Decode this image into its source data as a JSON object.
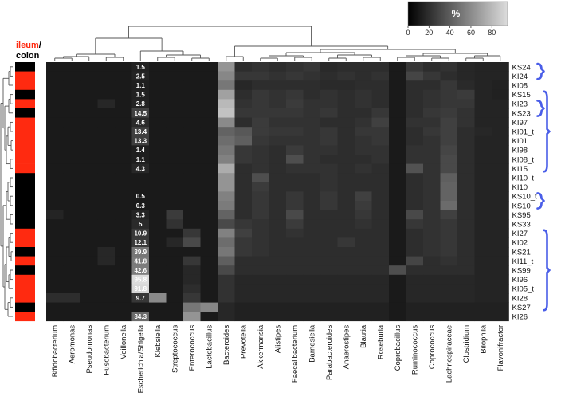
{
  "chart_data": {
    "type": "heatmap",
    "title": "",
    "side_legend": {
      "ileum": "ileum",
      "separator": "/",
      "colon": "colon",
      "ileum_color": "#ff2a10",
      "colon_color": "#000000"
    },
    "colorbar": {
      "title": "%",
      "ticks": [
        "0",
        "20",
        "40",
        "60",
        "80"
      ],
      "range": [
        0,
        95
      ],
      "low_color": "#000000",
      "high_color": "#dcdcdc"
    },
    "background_color": "#1a1a1a",
    "bracket_color": "#4a5ee8",
    "columns": [
      "Bifidobacterium",
      "Aeromonas",
      "Pseudomonas",
      "Fusobacterium",
      "Veillonella",
      "Escherichia/Shigella",
      "Klebsiella",
      "Streptococcus",
      "Enterococcus",
      "Lactobacillus",
      "Bacteroides",
      "Prevotella",
      "Akkermansia",
      "Alistipes",
      "Faecalibacterium",
      "Barnesiella",
      "Parabacteroides",
      "Anaerostipes",
      "Blautia",
      "Roseburia",
      "Coprobacillus",
      "Ruminococcus",
      "Coprococcus",
      "Lachnospiraceae",
      "Clostridium",
      "Bilophila",
      "Flavonifractor"
    ],
    "rows": [
      {
        "name": "KS24",
        "type": "colon",
        "esch": "1.5"
      },
      {
        "name": "KI24",
        "type": "ileum",
        "esch": "2.5"
      },
      {
        "name": "KI08",
        "type": "ileum",
        "esch": "1.1"
      },
      {
        "name": "KS15",
        "type": "colon",
        "esch": "1.5"
      },
      {
        "name": "KI23",
        "type": "ileum",
        "esch": "2.8"
      },
      {
        "name": "KS23",
        "type": "colon",
        "esch": "14.5"
      },
      {
        "name": "KI97",
        "type": "ileum",
        "esch": "4.6"
      },
      {
        "name": "KI01_t",
        "type": "ileum",
        "esch": "13.4"
      },
      {
        "name": "KI01",
        "type": "ileum",
        "esch": "13.3"
      },
      {
        "name": "KI98",
        "type": "ileum",
        "esch": "1.4"
      },
      {
        "name": "KI08_t",
        "type": "ileum",
        "esch": "1.1"
      },
      {
        "name": "KI15",
        "type": "ileum",
        "esch": "4.3"
      },
      {
        "name": "KI10_t",
        "type": "colon",
        "esch": ""
      },
      {
        "name": "KI10",
        "type": "colon",
        "esch": ""
      },
      {
        "name": "KS10_t",
        "type": "colon",
        "esch": "0.5"
      },
      {
        "name": "KS10",
        "type": "colon",
        "esch": "0.3"
      },
      {
        "name": "KS95",
        "type": "colon",
        "esch": "3.3"
      },
      {
        "name": "KS33",
        "type": "colon",
        "esch": "5"
      },
      {
        "name": "KI27",
        "type": "ileum",
        "esch": "10.9"
      },
      {
        "name": "KI02",
        "type": "ileum",
        "esch": "12.1"
      },
      {
        "name": "KS21",
        "type": "colon",
        "esch": "39.9"
      },
      {
        "name": "KI11_t",
        "type": "ileum",
        "esch": "41.8"
      },
      {
        "name": "KS99",
        "type": "colon",
        "esch": "42.6"
      },
      {
        "name": "KI96",
        "type": "ileum",
        "esch": "95.8"
      },
      {
        "name": "KI05_t",
        "type": "ileum",
        "esch": "91.8"
      },
      {
        "name": "KI28",
        "type": "ileum",
        "esch": "9.7"
      },
      {
        "name": "KS27",
        "type": "colon",
        "esch": ""
      },
      {
        "name": "KI26",
        "type": "ileum",
        "esch": "34.3"
      }
    ],
    "values": [
      [
        0,
        0,
        0,
        0,
        0,
        2,
        0,
        0,
        0,
        0,
        55,
        6,
        8,
        6,
        8,
        10,
        5,
        6,
        6,
        6,
        0,
        10,
        6,
        8,
        4,
        3,
        3
      ],
      [
        0,
        0,
        0,
        0,
        0,
        3,
        0,
        0,
        0,
        0,
        48,
        10,
        10,
        8,
        10,
        8,
        6,
        8,
        6,
        8,
        0,
        16,
        10,
        6,
        4,
        3,
        3
      ],
      [
        0,
        0,
        0,
        0,
        0,
        1,
        0,
        0,
        0,
        0,
        40,
        4,
        6,
        6,
        6,
        6,
        5,
        5,
        6,
        6,
        0,
        6,
        6,
        10,
        5,
        3,
        2
      ],
      [
        0,
        0,
        0,
        0,
        0,
        2,
        0,
        0,
        0,
        0,
        62,
        6,
        10,
        8,
        10,
        6,
        8,
        6,
        8,
        6,
        0,
        6,
        8,
        10,
        12,
        3,
        2
      ],
      [
        0,
        0,
        0,
        4,
        0,
        3,
        0,
        0,
        0,
        0,
        75,
        8,
        10,
        8,
        12,
        8,
        8,
        6,
        8,
        6,
        0,
        6,
        8,
        10,
        10,
        3,
        3
      ],
      [
        0,
        0,
        0,
        0,
        0,
        15,
        0,
        0,
        0,
        0,
        80,
        10,
        10,
        10,
        10,
        8,
        10,
        6,
        6,
        10,
        0,
        6,
        10,
        12,
        8,
        3,
        3
      ],
      [
        0,
        0,
        0,
        0,
        0,
        5,
        0,
        0,
        0,
        0,
        50,
        6,
        12,
        8,
        8,
        8,
        6,
        6,
        8,
        14,
        0,
        8,
        8,
        14,
        8,
        3,
        3
      ],
      [
        0,
        0,
        0,
        0,
        0,
        14,
        0,
        0,
        0,
        0,
        30,
        25,
        12,
        10,
        10,
        8,
        10,
        6,
        10,
        10,
        0,
        6,
        10,
        14,
        6,
        4,
        3
      ],
      [
        0,
        0,
        0,
        0,
        0,
        13,
        0,
        0,
        0,
        0,
        35,
        28,
        10,
        8,
        8,
        8,
        10,
        6,
        8,
        10,
        0,
        6,
        8,
        14,
        6,
        3,
        3
      ],
      [
        0,
        0,
        0,
        0,
        0,
        1,
        0,
        0,
        0,
        0,
        40,
        10,
        8,
        6,
        12,
        8,
        8,
        6,
        8,
        8,
        0,
        8,
        8,
        16,
        6,
        3,
        3
      ],
      [
        0,
        0,
        0,
        0,
        0,
        1,
        0,
        0,
        0,
        0,
        45,
        10,
        8,
        6,
        20,
        8,
        6,
        6,
        6,
        8,
        0,
        8,
        8,
        18,
        6,
        3,
        3
      ],
      [
        0,
        0,
        0,
        0,
        0,
        4,
        0,
        0,
        0,
        0,
        68,
        6,
        8,
        6,
        8,
        8,
        8,
        6,
        8,
        6,
        0,
        22,
        8,
        18,
        6,
        3,
        3
      ],
      [
        0,
        0,
        0,
        0,
        0,
        0,
        0,
        0,
        0,
        0,
        55,
        6,
        20,
        6,
        6,
        6,
        8,
        6,
        6,
        6,
        0,
        6,
        8,
        28,
        6,
        3,
        3
      ],
      [
        0,
        0,
        0,
        0,
        0,
        0,
        0,
        0,
        0,
        0,
        55,
        6,
        12,
        6,
        6,
        6,
        8,
        6,
        6,
        6,
        0,
        6,
        8,
        30,
        6,
        3,
        3
      ],
      [
        0,
        0,
        0,
        0,
        0,
        0,
        0,
        0,
        0,
        0,
        45,
        6,
        10,
        6,
        10,
        6,
        10,
        6,
        14,
        6,
        0,
        6,
        8,
        30,
        6,
        3,
        3
      ],
      [
        0,
        0,
        0,
        0,
        0,
        0,
        0,
        0,
        0,
        0,
        42,
        6,
        10,
        6,
        10,
        6,
        10,
        6,
        12,
        6,
        0,
        6,
        8,
        34,
        6,
        3,
        3
      ],
      [
        3,
        0,
        0,
        0,
        0,
        3,
        0,
        12,
        0,
        0,
        30,
        6,
        10,
        6,
        18,
        6,
        6,
        6,
        10,
        6,
        0,
        18,
        8,
        14,
        6,
        3,
        3
      ],
      [
        0,
        0,
        0,
        0,
        0,
        5,
        0,
        8,
        0,
        0,
        18,
        10,
        8,
        6,
        12,
        6,
        6,
        6,
        8,
        6,
        0,
        10,
        8,
        10,
        6,
        3,
        3
      ],
      [
        0,
        0,
        0,
        0,
        0,
        11,
        0,
        0,
        10,
        0,
        45,
        14,
        8,
        6,
        8,
        6,
        6,
        6,
        6,
        6,
        0,
        6,
        8,
        10,
        6,
        3,
        3
      ],
      [
        0,
        0,
        0,
        0,
        0,
        12,
        0,
        4,
        18,
        0,
        35,
        10,
        8,
        6,
        6,
        6,
        6,
        10,
        6,
        6,
        0,
        6,
        8,
        10,
        6,
        3,
        3
      ],
      [
        0,
        0,
        0,
        4,
        0,
        40,
        0,
        0,
        0,
        0,
        40,
        10,
        8,
        6,
        6,
        6,
        6,
        6,
        6,
        6,
        0,
        6,
        8,
        10,
        6,
        3,
        3
      ],
      [
        0,
        0,
        0,
        4,
        0,
        42,
        0,
        0,
        10,
        0,
        28,
        6,
        6,
        6,
        6,
        6,
        6,
        6,
        6,
        6,
        0,
        16,
        6,
        8,
        6,
        3,
        3
      ],
      [
        0,
        0,
        0,
        0,
        0,
        43,
        0,
        0,
        4,
        0,
        18,
        6,
        6,
        6,
        6,
        6,
        6,
        6,
        6,
        6,
        20,
        6,
        6,
        6,
        6,
        3,
        3
      ],
      [
        0,
        0,
        0,
        0,
        0,
        96,
        0,
        0,
        4,
        0,
        8,
        4,
        4,
        4,
        4,
        4,
        4,
        4,
        4,
        4,
        0,
        4,
        4,
        4,
        4,
        3,
        3
      ],
      [
        0,
        0,
        0,
        0,
        0,
        92,
        0,
        0,
        6,
        0,
        8,
        4,
        4,
        4,
        4,
        4,
        4,
        4,
        4,
        4,
        0,
        4,
        4,
        4,
        4,
        3,
        3
      ],
      [
        6,
        6,
        0,
        0,
        0,
        10,
        50,
        0,
        10,
        0,
        8,
        4,
        4,
        4,
        4,
        4,
        4,
        4,
        4,
        4,
        0,
        4,
        4,
        4,
        4,
        3,
        3
      ],
      [
        0,
        0,
        0,
        0,
        0,
        0,
        0,
        0,
        40,
        48,
        4,
        2,
        2,
        2,
        2,
        2,
        2,
        2,
        2,
        2,
        0,
        2,
        2,
        2,
        2,
        2,
        2
      ],
      [
        0,
        0,
        0,
        0,
        0,
        34,
        0,
        0,
        55,
        0,
        4,
        2,
        2,
        2,
        2,
        2,
        2,
        2,
        2,
        2,
        0,
        2,
        2,
        2,
        2,
        2,
        2
      ]
    ],
    "brackets": [
      {
        "rows": [
          0,
          1
        ],
        "shape": "brace"
      },
      {
        "rows": [
          4,
          5
        ],
        "shape": "brace"
      },
      {
        "rows": [
          3,
          11
        ],
        "shape": "line"
      },
      {
        "rows": [
          14,
          15
        ],
        "shape": "brace"
      },
      {
        "rows": [
          18,
          26
        ],
        "shape": "line"
      }
    ]
  }
}
